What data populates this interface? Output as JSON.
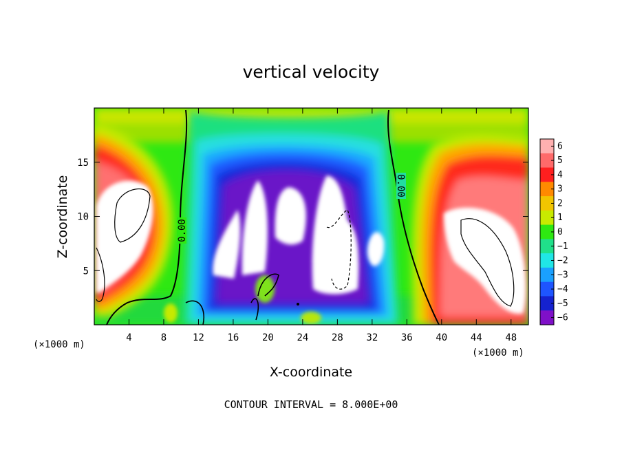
{
  "chart_data": {
    "type": "heatmap",
    "title": "vertical velocity",
    "xlabel": "X-coordinate",
    "ylabel": "Z-coordinate",
    "x_unit_label_left": "(×1000 m)",
    "x_unit_label_right": "(×1000 m)",
    "xlim": [
      0,
      50
    ],
    "ylim": [
      0,
      20
    ],
    "x_ticks": [
      4,
      8,
      12,
      16,
      20,
      24,
      28,
      32,
      36,
      40,
      44,
      48
    ],
    "y_ticks": [
      5,
      10,
      15
    ],
    "colorbar": {
      "min": -6,
      "max": 6,
      "ticks": [
        6,
        5,
        4,
        3,
        2,
        1,
        0,
        -1,
        -2,
        -3,
        -4,
        -5,
        -6
      ],
      "tick_labels": [
        "6",
        "5",
        "4",
        "3",
        "2",
        "1",
        "0",
        "−1",
        "−2",
        "−3",
        "−4",
        "−5",
        "−6"
      ]
    },
    "contour_labels": [
      "0.00",
      "0.00"
    ],
    "features": [
      {
        "kind": "updraft",
        "x": 4.5,
        "z": 10,
        "value": 8
      },
      {
        "kind": "updraft",
        "x": 46,
        "z": 8,
        "value": 8
      },
      {
        "kind": "downdraft",
        "x": 20,
        "z": 9,
        "value": -8
      },
      {
        "kind": "downdraft",
        "x": 28.5,
        "z": 8,
        "value": -8
      }
    ],
    "grid": false,
    "legend": "colorbar-right"
  },
  "footer": {
    "contour_interval": "CONTOUR INTERVAL = 8.000E+00"
  }
}
